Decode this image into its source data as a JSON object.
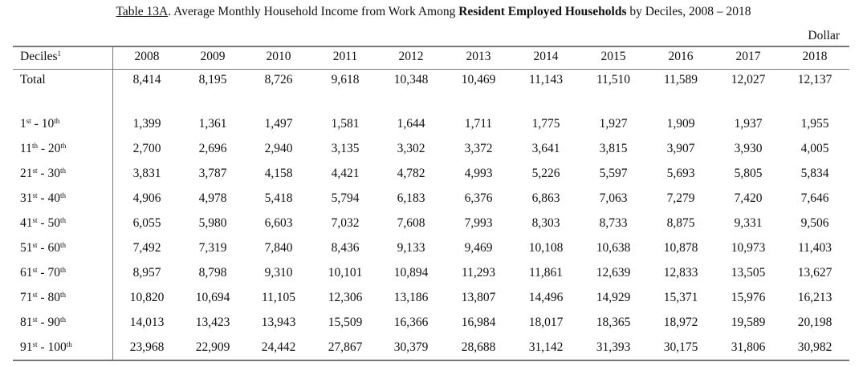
{
  "title": {
    "label": "Table 13A",
    "text_before_bold": ". Average Monthly Household Income from Work Among ",
    "bold": "Resident Employed Households",
    "text_after_bold": " by Deciles, 2008 – 2018"
  },
  "unit": "Dollar",
  "table": {
    "header_label": "Deciles",
    "header_footnote": "1",
    "years": [
      "2008",
      "2009",
      "2010",
      "2011",
      "2012",
      "2013",
      "2014",
      "2015",
      "2016",
      "2017",
      "2018"
    ],
    "total": {
      "label": "Total",
      "values": [
        "8,414",
        "8,195",
        "8,726",
        "9,618",
        "10,348",
        "10,469",
        "11,143",
        "11,510",
        "11,589",
        "12,027",
        "12,137"
      ]
    },
    "rows": [
      {
        "from": "1",
        "from_sup": "st",
        "to": "10",
        "to_sup": "th",
        "values": [
          "1,399",
          "1,361",
          "1,497",
          "1,581",
          "1,644",
          "1,711",
          "1,775",
          "1,927",
          "1,909",
          "1,937",
          "1,955"
        ]
      },
      {
        "from": "11",
        "from_sup": "th",
        "to": "20",
        "to_sup": "th",
        "values": [
          "2,700",
          "2,696",
          "2,940",
          "3,135",
          "3,302",
          "3,372",
          "3,641",
          "3,815",
          "3,907",
          "3,930",
          "4,005"
        ]
      },
      {
        "from": "21",
        "from_sup": "st",
        "to": "30",
        "to_sup": "th",
        "values": [
          "3,831",
          "3,787",
          "4,158",
          "4,421",
          "4,782",
          "4,993",
          "5,226",
          "5,597",
          "5,693",
          "5,805",
          "5,834"
        ]
      },
      {
        "from": "31",
        "from_sup": "st",
        "to": "40",
        "to_sup": "th",
        "values": [
          "4,906",
          "4,978",
          "5,418",
          "5,794",
          "6,183",
          "6,376",
          "6,863",
          "7,063",
          "7,279",
          "7,420",
          "7,646"
        ]
      },
      {
        "from": "41",
        "from_sup": "st",
        "to": "50",
        "to_sup": "th",
        "values": [
          "6,055",
          "5,980",
          "6,603",
          "7,032",
          "7,608",
          "7,993",
          "8,303",
          "8,733",
          "8,875",
          "9,331",
          "9,506"
        ]
      },
      {
        "from": "51",
        "from_sup": "st",
        "to": "60",
        "to_sup": "th",
        "values": [
          "7,492",
          "7,319",
          "7,840",
          "8,436",
          "9,133",
          "9,469",
          "10,108",
          "10,638",
          "10,878",
          "10,973",
          "11,403"
        ]
      },
      {
        "from": "61",
        "from_sup": "st",
        "to": "70",
        "to_sup": "th",
        "values": [
          "8,957",
          "8,798",
          "9,310",
          "10,101",
          "10,894",
          "11,293",
          "11,861",
          "12,639",
          "12,833",
          "13,505",
          "13,627"
        ]
      },
      {
        "from": "71",
        "from_sup": "st",
        "to": "80",
        "to_sup": "th",
        "values": [
          "10,820",
          "10,694",
          "11,105",
          "12,306",
          "13,186",
          "13,807",
          "14,496",
          "14,929",
          "15,371",
          "15,976",
          "16,213"
        ]
      },
      {
        "from": "81",
        "from_sup": "st",
        "to": "90",
        "to_sup": "th",
        "values": [
          "14,013",
          "13,423",
          "13,943",
          "15,509",
          "16,366",
          "16,984",
          "18,017",
          "18,365",
          "18,972",
          "19,589",
          "20,198"
        ]
      },
      {
        "from": "91",
        "from_sup": "st",
        "to": "100",
        "to_sup": "th",
        "values": [
          "23,968",
          "22,909",
          "24,442",
          "27,867",
          "30,379",
          "28,688",
          "31,142",
          "31,393",
          "30,175",
          "31,806",
          "30,982"
        ]
      }
    ]
  }
}
